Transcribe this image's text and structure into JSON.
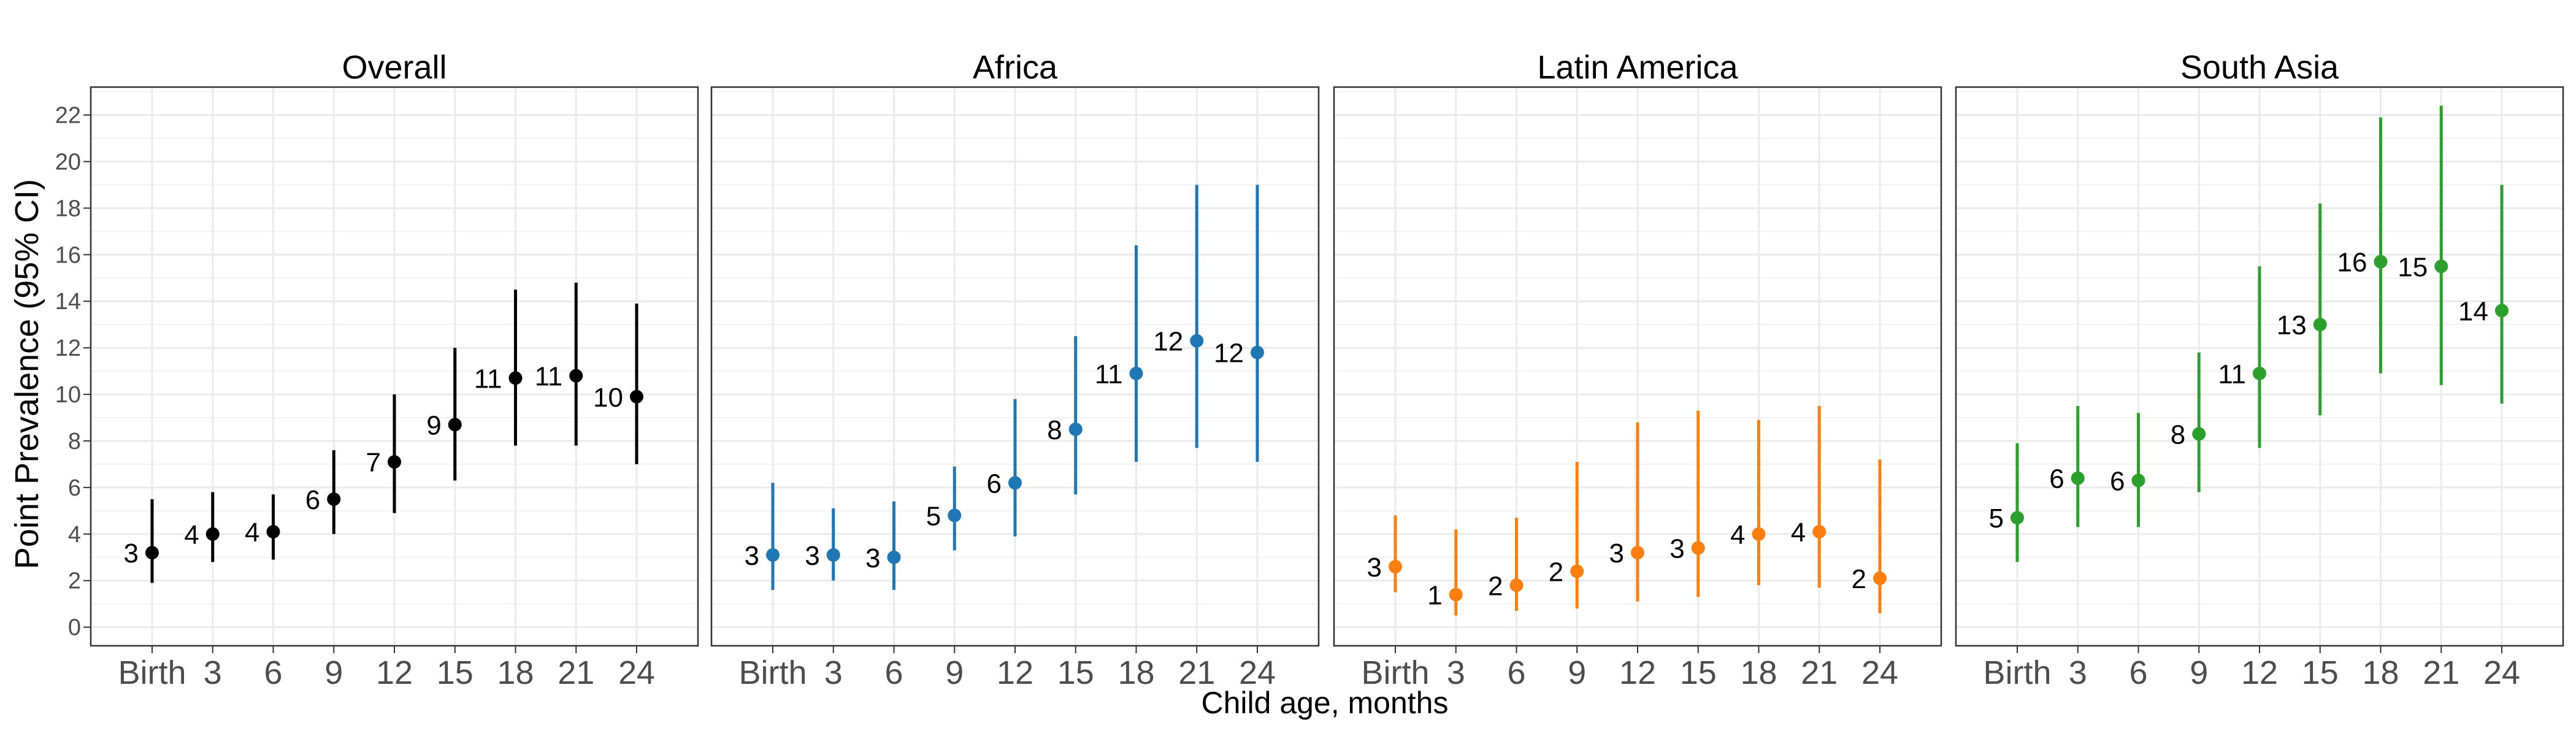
{
  "chart_data": {
    "type": "scatter",
    "ylabel": "Point Prevalence (95% CI)",
    "xlabel": "Child age, months",
    "x_categories": [
      "Birth",
      "3",
      "6",
      "9",
      "12",
      "15",
      "18",
      "21",
      "24"
    ],
    "ylim": [
      -0.8,
      23.2
    ],
    "yticks": [
      0,
      2,
      4,
      6,
      8,
      10,
      12,
      14,
      16,
      18,
      20,
      22
    ],
    "grid": true,
    "panels": [
      {
        "title": "Overall",
        "color": "#000000",
        "estimate": [
          3.2,
          4.0,
          4.1,
          5.5,
          7.1,
          8.7,
          10.7,
          10.8,
          9.9
        ],
        "lower": [
          1.9,
          2.8,
          2.9,
          4.0,
          4.9,
          6.3,
          7.8,
          7.8,
          7.0
        ],
        "upper": [
          5.5,
          5.8,
          5.7,
          7.6,
          10.0,
          12.0,
          14.5,
          14.8,
          13.9
        ],
        "labels": [
          "3",
          "4",
          "4",
          "6",
          "7",
          "9",
          "11",
          "11",
          "10"
        ]
      },
      {
        "title": "Africa",
        "color": "#1f77b4",
        "estimate": [
          3.1,
          3.1,
          3.0,
          4.8,
          6.2,
          8.5,
          10.9,
          12.3,
          11.8
        ],
        "lower": [
          1.6,
          2.0,
          1.6,
          3.3,
          3.9,
          5.7,
          7.1,
          7.7,
          7.1
        ],
        "upper": [
          6.2,
          5.1,
          5.4,
          6.9,
          9.8,
          12.5,
          16.4,
          19.0,
          19.0
        ],
        "labels": [
          "3",
          "3",
          "3",
          "5",
          "6",
          "8",
          "11",
          "12",
          "12"
        ]
      },
      {
        "title": "Latin America",
        "color": "#ff7f0e",
        "estimate": [
          2.6,
          1.4,
          1.8,
          2.4,
          3.2,
          3.4,
          4.0,
          4.1,
          2.1
        ],
        "lower": [
          1.5,
          0.5,
          0.7,
          0.8,
          1.1,
          1.3,
          1.8,
          1.7,
          0.6
        ],
        "upper": [
          4.8,
          4.2,
          4.7,
          7.1,
          8.8,
          9.3,
          8.9,
          9.5,
          7.2
        ],
        "labels": [
          "3",
          "1",
          "2",
          "2",
          "3",
          "3",
          "4",
          "4",
          "2"
        ]
      },
      {
        "title": "South Asia",
        "color": "#2ca02c",
        "estimate": [
          4.7,
          6.4,
          6.3,
          8.3,
          10.9,
          13.0,
          15.7,
          15.5,
          13.6
        ],
        "lower": [
          2.8,
          4.3,
          4.3,
          5.8,
          7.7,
          9.1,
          10.9,
          10.4,
          9.6
        ],
        "upper": [
          7.9,
          9.5,
          9.2,
          11.8,
          15.5,
          18.2,
          21.9,
          22.4,
          19.0
        ],
        "labels": [
          "5",
          "6",
          "6",
          "8",
          "11",
          "13",
          "16",
          "15",
          "14"
        ]
      }
    ]
  }
}
